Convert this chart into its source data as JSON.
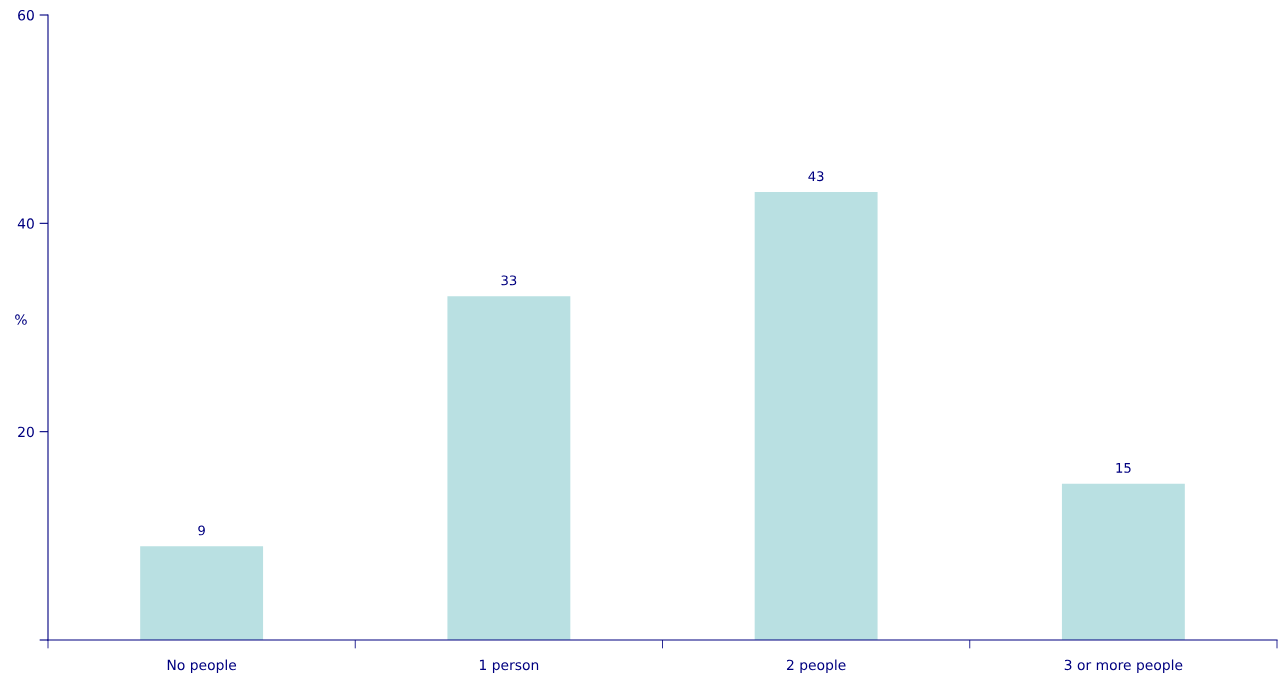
{
  "chart_data": {
    "type": "bar",
    "categories": [
      "No people",
      "1 person",
      "2 people",
      "3 or more people"
    ],
    "values": [
      9,
      33,
      43,
      15
    ],
    "color": "#b9e0e2",
    "ylabel": "%",
    "ylim": [
      0,
      60
    ],
    "yticks": [
      {
        "value": 0,
        "label": null
      },
      20,
      40,
      60
    ],
    "data_labels": true,
    "grid": false,
    "legend": false
  }
}
